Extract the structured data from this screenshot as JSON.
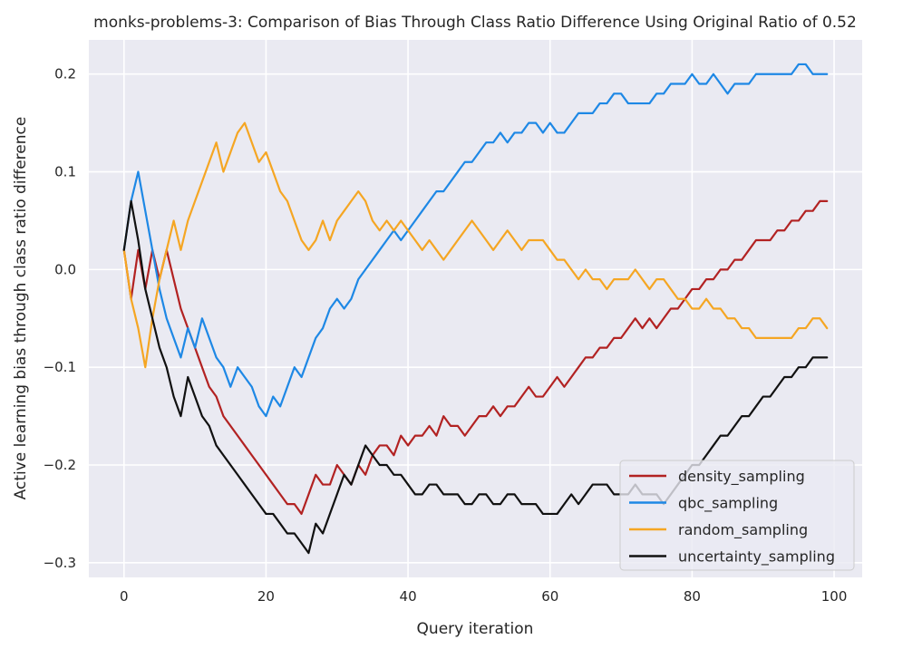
{
  "chart_data": {
    "type": "line",
    "title": "monks-problems-3: Comparison of Bias Through Class Ratio Difference Using Original Ratio of 0.52",
    "xlabel": "Query iteration",
    "ylabel": "Active learning bias through class ratio difference",
    "xlim": [
      -4.95,
      103.95
    ],
    "ylim": [
      -0.315,
      0.235
    ],
    "xticks": [
      0,
      20,
      40,
      60,
      80,
      100
    ],
    "xtick_labels": [
      "0",
      "20",
      "40",
      "60",
      "80",
      "100"
    ],
    "yticks": [
      -0.3,
      -0.2,
      -0.1,
      0.0,
      0.1,
      0.2
    ],
    "ytick_labels": [
      "−0.3",
      "−0.2",
      "−0.1",
      "0.0",
      "0.1",
      "0.2"
    ],
    "grid": true,
    "legend_position": "lower-right",
    "background": "#eaeaf2",
    "x": [
      0,
      1,
      2,
      3,
      4,
      5,
      6,
      7,
      8,
      9,
      10,
      11,
      12,
      13,
      14,
      15,
      16,
      17,
      18,
      19,
      20,
      21,
      22,
      23,
      24,
      25,
      26,
      27,
      28,
      29,
      30,
      31,
      32,
      33,
      34,
      35,
      36,
      37,
      38,
      39,
      40,
      41,
      42,
      43,
      44,
      45,
      46,
      47,
      48,
      49,
      50,
      51,
      52,
      53,
      54,
      55,
      56,
      57,
      58,
      59,
      60,
      61,
      62,
      63,
      64,
      65,
      66,
      67,
      68,
      69,
      70,
      71,
      72,
      73,
      74,
      75,
      76,
      77,
      78,
      79,
      80,
      81,
      82,
      83,
      84,
      85,
      86,
      87,
      88,
      89,
      90,
      91,
      92,
      93,
      94,
      95,
      96,
      97,
      98,
      99
    ],
    "series": [
      {
        "name": "density_sampling",
        "color": "#b22222",
        "values": [
          0.02,
          -0.03,
          0.02,
          -0.02,
          0.02,
          -0.01,
          0.02,
          -0.01,
          -0.04,
          -0.06,
          -0.08,
          -0.1,
          -0.12,
          -0.13,
          -0.15,
          -0.16,
          -0.17,
          -0.18,
          -0.19,
          -0.2,
          -0.21,
          -0.22,
          -0.23,
          -0.24,
          -0.24,
          -0.25,
          -0.23,
          -0.21,
          -0.22,
          -0.22,
          -0.2,
          -0.21,
          -0.22,
          -0.2,
          -0.21,
          -0.19,
          -0.18,
          -0.18,
          -0.19,
          -0.17,
          -0.18,
          -0.17,
          -0.17,
          -0.16,
          -0.17,
          -0.15,
          -0.16,
          -0.16,
          -0.17,
          -0.16,
          -0.15,
          -0.15,
          -0.14,
          -0.15,
          -0.14,
          -0.14,
          -0.13,
          -0.12,
          -0.13,
          -0.13,
          -0.12,
          -0.11,
          -0.12,
          -0.11,
          -0.1,
          -0.09,
          -0.09,
          -0.08,
          -0.08,
          -0.07,
          -0.07,
          -0.06,
          -0.05,
          -0.06,
          -0.05,
          -0.06,
          -0.05,
          -0.04,
          -0.04,
          -0.03,
          -0.02,
          -0.02,
          -0.01,
          -0.01,
          0.0,
          0.0,
          0.01,
          0.01,
          0.02,
          0.03,
          0.03,
          0.03,
          0.04,
          0.04,
          0.05,
          0.05,
          0.06,
          0.06,
          0.07,
          0.07
        ]
      },
      {
        "name": "qbc_sampling",
        "color": "#1e88e5",
        "values": [
          0.02,
          0.07,
          0.1,
          0.06,
          0.02,
          -0.02,
          -0.05,
          -0.07,
          -0.09,
          -0.06,
          -0.08,
          -0.05,
          -0.07,
          -0.09,
          -0.1,
          -0.12,
          -0.1,
          -0.11,
          -0.12,
          -0.14,
          -0.15,
          -0.13,
          -0.14,
          -0.12,
          -0.1,
          -0.11,
          -0.09,
          -0.07,
          -0.06,
          -0.04,
          -0.03,
          -0.04,
          -0.03,
          -0.01,
          0.0,
          0.01,
          0.02,
          0.03,
          0.04,
          0.03,
          0.04,
          0.05,
          0.06,
          0.07,
          0.08,
          0.08,
          0.09,
          0.1,
          0.11,
          0.11,
          0.12,
          0.13,
          0.13,
          0.14,
          0.13,
          0.14,
          0.14,
          0.15,
          0.15,
          0.14,
          0.15,
          0.14,
          0.14,
          0.15,
          0.16,
          0.16,
          0.16,
          0.17,
          0.17,
          0.18,
          0.18,
          0.17,
          0.17,
          0.17,
          0.17,
          0.18,
          0.18,
          0.19,
          0.19,
          0.19,
          0.2,
          0.19,
          0.19,
          0.2,
          0.19,
          0.18,
          0.19,
          0.19,
          0.19,
          0.2,
          0.2,
          0.2,
          0.2,
          0.2,
          0.2,
          0.21,
          0.21,
          0.2,
          0.2,
          0.2
        ]
      },
      {
        "name": "random_sampling",
        "color": "#f5a623",
        "values": [
          0.02,
          -0.03,
          -0.06,
          -0.1,
          -0.05,
          -0.01,
          0.02,
          0.05,
          0.02,
          0.05,
          0.07,
          0.09,
          0.11,
          0.13,
          0.1,
          0.12,
          0.14,
          0.15,
          0.13,
          0.11,
          0.12,
          0.1,
          0.08,
          0.07,
          0.05,
          0.03,
          0.02,
          0.03,
          0.05,
          0.03,
          0.05,
          0.06,
          0.07,
          0.08,
          0.07,
          0.05,
          0.04,
          0.05,
          0.04,
          0.05,
          0.04,
          0.03,
          0.02,
          0.03,
          0.02,
          0.01,
          0.02,
          0.03,
          0.04,
          0.05,
          0.04,
          0.03,
          0.02,
          0.03,
          0.04,
          0.03,
          0.02,
          0.03,
          0.03,
          0.03,
          0.02,
          0.01,
          0.01,
          0.0,
          -0.01,
          0.0,
          -0.01,
          -0.01,
          -0.02,
          -0.01,
          -0.01,
          -0.01,
          0.0,
          -0.01,
          -0.02,
          -0.01,
          -0.01,
          -0.02,
          -0.03,
          -0.03,
          -0.04,
          -0.04,
          -0.03,
          -0.04,
          -0.04,
          -0.05,
          -0.05,
          -0.06,
          -0.06,
          -0.07,
          -0.07,
          -0.07,
          -0.07,
          -0.07,
          -0.07,
          -0.06,
          -0.06,
          -0.05,
          -0.05,
          -0.06
        ]
      },
      {
        "name": "uncertainty_sampling",
        "color": "#111111",
        "values": [
          0.02,
          0.07,
          0.03,
          -0.02,
          -0.05,
          -0.08,
          -0.1,
          -0.13,
          -0.15,
          -0.11,
          -0.13,
          -0.15,
          -0.16,
          -0.18,
          -0.19,
          -0.2,
          -0.21,
          -0.22,
          -0.23,
          -0.24,
          -0.25,
          -0.25,
          -0.26,
          -0.27,
          -0.27,
          -0.28,
          -0.29,
          -0.26,
          -0.27,
          -0.25,
          -0.23,
          -0.21,
          -0.22,
          -0.2,
          -0.18,
          -0.19,
          -0.2,
          -0.2,
          -0.21,
          -0.21,
          -0.22,
          -0.23,
          -0.23,
          -0.22,
          -0.22,
          -0.23,
          -0.23,
          -0.23,
          -0.24,
          -0.24,
          -0.23,
          -0.23,
          -0.24,
          -0.24,
          -0.23,
          -0.23,
          -0.24,
          -0.24,
          -0.24,
          -0.25,
          -0.25,
          -0.25,
          -0.24,
          -0.23,
          -0.24,
          -0.23,
          -0.22,
          -0.22,
          -0.22,
          -0.23,
          -0.23,
          -0.23,
          -0.22,
          -0.23,
          -0.23,
          -0.23,
          -0.24,
          -0.23,
          -0.22,
          -0.21,
          -0.2,
          -0.2,
          -0.19,
          -0.18,
          -0.17,
          -0.17,
          -0.16,
          -0.15,
          -0.15,
          -0.14,
          -0.13,
          -0.13,
          -0.12,
          -0.11,
          -0.11,
          -0.1,
          -0.1,
          -0.09,
          -0.09,
          -0.09
        ]
      }
    ]
  }
}
